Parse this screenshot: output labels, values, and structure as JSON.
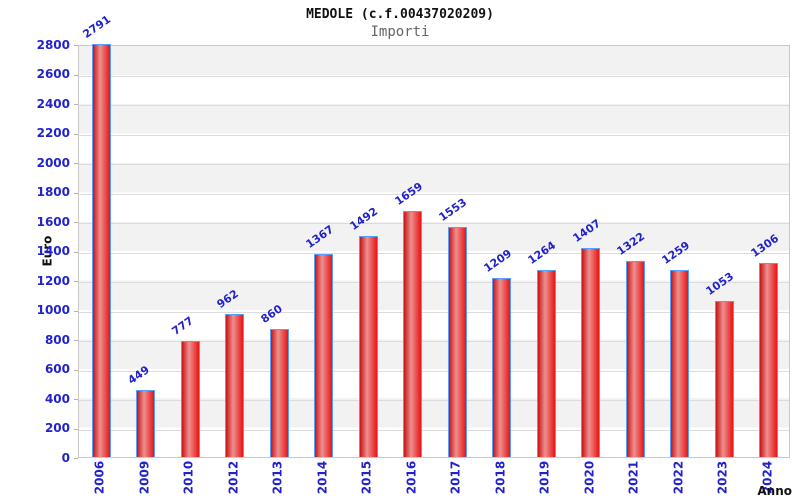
{
  "chart_data": {
    "type": "bar",
    "title": "MEDOLE (c.f.00437020209)",
    "subtitle": "Importi",
    "xlabel": "Anno",
    "ylabel": "Euro",
    "categories": [
      "2006",
      "2009",
      "2010",
      "2012",
      "2013",
      "2014",
      "2015",
      "2016",
      "2017",
      "2018",
      "2019",
      "2020",
      "2021",
      "2022",
      "2023",
      "2024"
    ],
    "values": [
      2791,
      449,
      777,
      962,
      860,
      1367,
      1492,
      1659,
      1553,
      1209,
      1264,
      1407,
      1322,
      1259,
      1053,
      1306
    ],
    "ylim": [
      0,
      2800
    ],
    "yticks": [
      0,
      200,
      400,
      600,
      800,
      1000,
      1200,
      1400,
      1600,
      1800,
      2000,
      2200,
      2400,
      2600,
      2800
    ],
    "grid": "horizontal-bands",
    "legend": "none",
    "colors": {
      "bar_fill": "#e81414",
      "bar_highlight": "#ee9090",
      "bar_border": "#55a0ff",
      "axis_text": "#2222cc",
      "value_text": "#2222cc",
      "band_gray": "#f2f2f2",
      "gridline": "#dcdcdc",
      "title_text": "#111111",
      "subtitle_text": "#666666"
    }
  }
}
